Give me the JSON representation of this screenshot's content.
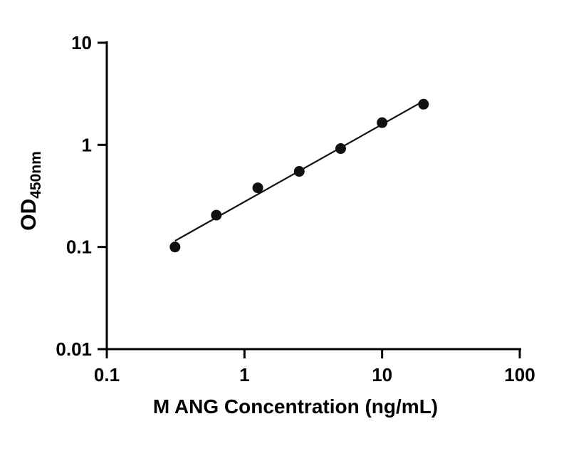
{
  "chart_data": {
    "type": "scatter",
    "title": "",
    "xlabel": "M ANG Concentration (ng/mL)",
    "ylabel_main": "OD",
    "ylabel_sub": "450nm",
    "xscale": "log",
    "yscale": "log",
    "xlim": [
      0.1,
      100
    ],
    "ylim": [
      0.01,
      10
    ],
    "x_tick_values": [
      0.1,
      1,
      10,
      100
    ],
    "x_tick_labels": [
      "0.1",
      "1",
      "10",
      "100"
    ],
    "y_tick_values": [
      0.01,
      0.1,
      1,
      10
    ],
    "y_tick_labels": [
      "0.01",
      "0.1",
      "1",
      "10"
    ],
    "x": [
      0.313,
      0.625,
      1.25,
      2.5,
      5,
      10,
      20
    ],
    "y": [
      0.1,
      0.205,
      0.38,
      0.55,
      0.92,
      1.65,
      2.5
    ],
    "trend_line": true,
    "grid": false,
    "legend": null,
    "axis_color": "#000000",
    "marker_color": "#111111",
    "line_color": "#111111"
  }
}
